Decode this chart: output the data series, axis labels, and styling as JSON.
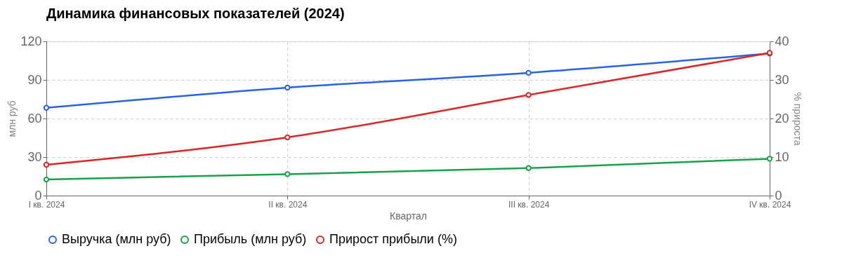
{
  "chart_data": {
    "type": "line",
    "title": "Динамика финансовых показателей (2024)",
    "xlabel": "Квартал",
    "ylabel": "млн руб",
    "y2label": "% прироста",
    "categories": [
      "I кв. 2024",
      "II кв. 2024",
      "III кв. 2024",
      "IV кв. 2024"
    ],
    "series": [
      {
        "name": "Выручка (млн руб)",
        "color": "#2563eb",
        "values": [
          68.3,
          84,
          95.5,
          110.6
        ]
      },
      {
        "name": "Прибыль (млн руб)",
        "color": "#16a34a",
        "values": [
          12.5,
          16.7,
          21.4,
          28.7
        ]
      },
      {
        "name": "Прирост прибыли (%)",
        "color": "#dc2626",
        "values": [
          8,
          15.1,
          26.1,
          37
        ],
        "axis": "y2"
      }
    ],
    "ylim": [
      0,
      120
    ],
    "yticks": [
      0,
      30,
      60,
      90,
      120
    ],
    "y2lim": [
      0,
      40
    ],
    "y2ticks": [
      0,
      10,
      20,
      30,
      40
    ],
    "grid": true,
    "legend": "bottom",
    "marker": "circle",
    "line_style": "solid"
  }
}
